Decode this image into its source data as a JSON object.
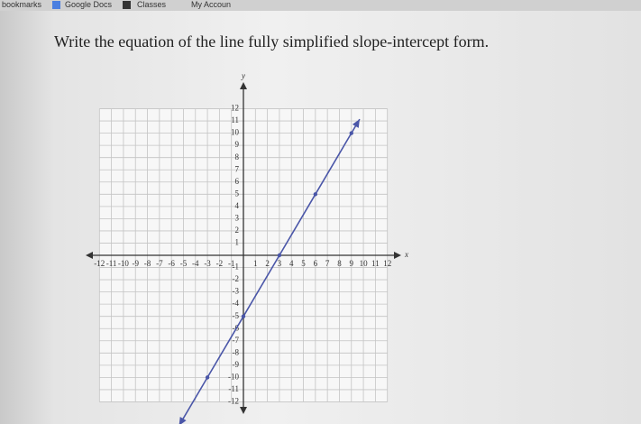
{
  "bookmarks": [
    "bookmarks",
    "Google Docs",
    "Classes",
    "My Accoun"
  ],
  "question": "Write the equation of the line fully simplified slope-intercept form.",
  "chart_data": {
    "type": "line",
    "x_label": "x",
    "y_label": "y",
    "x": [
      -3,
      0,
      3,
      6,
      9
    ],
    "series": [
      {
        "color": "#4a56a8",
        "values": [
          -10,
          -5,
          0,
          5,
          10
        ]
      }
    ],
    "xlim": [
      -13,
      13
    ],
    "ylim": [
      -13,
      13
    ],
    "xticks": [
      -12,
      -11,
      -10,
      -9,
      -8,
      -7,
      -6,
      -5,
      -4,
      -3,
      -2,
      -1,
      1,
      2,
      3,
      4,
      5,
      6,
      7,
      8,
      9,
      10,
      11,
      12
    ],
    "yticks": [
      -12,
      -11,
      -10,
      -9,
      -8,
      -7,
      -6,
      -5,
      -4,
      -3,
      -2,
      -1,
      1,
      2,
      3,
      4,
      5,
      6,
      7,
      8,
      9,
      10,
      11,
      12
    ],
    "grid": true
  }
}
